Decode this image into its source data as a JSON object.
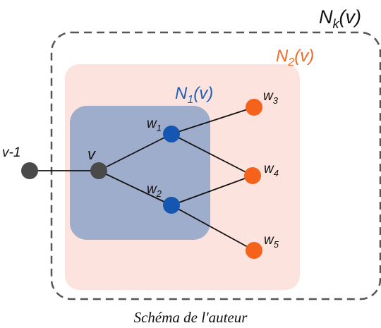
{
  "labels": {
    "nk": {
      "main": "N",
      "sub": "k",
      "tail": "(v)"
    },
    "n2": {
      "main": "N",
      "sub": "2",
      "tail": "(v)"
    },
    "n1": {
      "main": "N",
      "sub": "1",
      "tail": "(v)"
    },
    "v_prev": "v-1",
    "v": "v",
    "w1": {
      "main": "w",
      "sub": "1"
    },
    "w2": {
      "main": "w",
      "sub": "2"
    },
    "w3": {
      "main": "w",
      "sub": "3"
    },
    "w4": {
      "main": "w",
      "sub": "4"
    },
    "w5": {
      "main": "w",
      "sub": "5"
    }
  },
  "caption": "Schéma de l'auteur",
  "colors": {
    "nk_border": "#555555",
    "n2_fill": "#fde3dd",
    "n1_fill": "#9fadcc",
    "n1_label": "#1f5fb5",
    "n2_label": "#f06a28",
    "dark_node": "#4a4a4a",
    "blue_node": "#1557b0",
    "orange_node": "#f5621c",
    "edge": "#111111"
  }
}
